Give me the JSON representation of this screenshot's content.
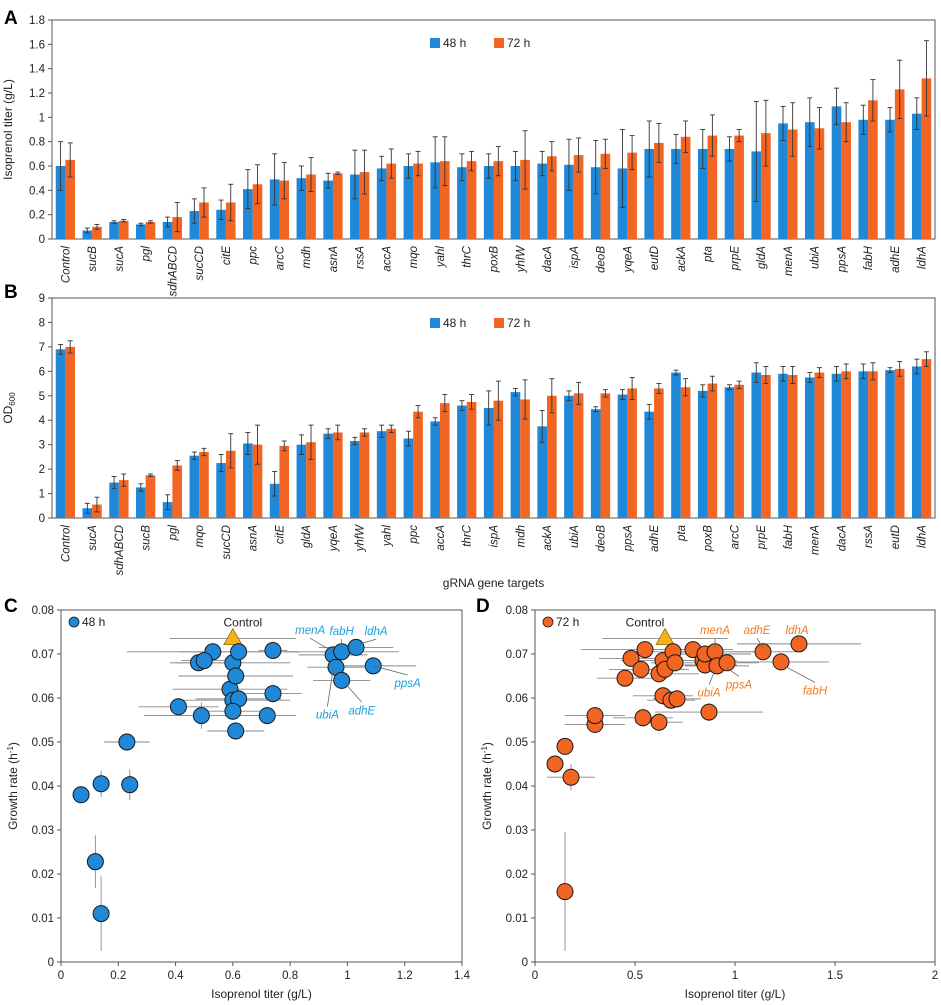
{
  "colors": {
    "blue": "#1f88d9",
    "orange": "#f26522",
    "gold": "#f5b21b",
    "axis": "#555555",
    "error": "#333333",
    "annotBlue": "#1aa0dc",
    "annotOrange": "#f27a22"
  },
  "chart_data": [
    {
      "panel": "A",
      "type": "bar",
      "ylabel": "Isoprenol titer (g/L)",
      "xlabel": "",
      "ylim": [
        0,
        1.8
      ],
      "yticks": [
        "0",
        "0.2",
        "0.4",
        "0.6",
        "0.8",
        "1",
        "1.2",
        "1.4",
        "1.6",
        "1.8"
      ],
      "legend": "top-center",
      "categories": [
        "Control",
        "sucB",
        "sucA",
        "pgl",
        "sdhABCD",
        "sucCD",
        "citE",
        "ppc",
        "arcC",
        "mdh",
        "asnA",
        "rssA",
        "accA",
        "mqo",
        "yahl",
        "thrC",
        "poxB",
        "yhfW",
        "dacA",
        "ispA",
        "deoB",
        "yqeA",
        "eutD",
        "ackA",
        "pta",
        "prpE",
        "gldA",
        "menA",
        "ubiA",
        "ppsA",
        "fabH",
        "adhE",
        "ldhA"
      ],
      "series": [
        {
          "name": "48 h",
          "values": [
            0.6,
            0.07,
            0.14,
            0.12,
            0.14,
            0.23,
            0.24,
            0.41,
            0.49,
            0.5,
            0.48,
            0.53,
            0.58,
            0.6,
            0.63,
            0.59,
            0.6,
            0.6,
            0.62,
            0.61,
            0.59,
            0.58,
            0.74,
            0.74,
            0.74,
            0.74,
            0.72,
            0.95,
            0.96,
            1.09,
            0.98,
            0.98,
            1.03
          ],
          "errors": [
            0.2,
            0.02,
            0.01,
            0.01,
            0.04,
            0.1,
            0.08,
            0.16,
            0.21,
            0.1,
            0.06,
            0.2,
            0.1,
            0.1,
            0.21,
            0.11,
            0.1,
            0.12,
            0.1,
            0.21,
            0.22,
            0.32,
            0.23,
            0.12,
            0.16,
            0.1,
            0.41,
            0.14,
            0.2,
            0.15,
            0.12,
            0.1,
            0.13
          ]
        },
        {
          "name": "72 h",
          "values": [
            0.65,
            0.1,
            0.15,
            0.14,
            0.18,
            0.3,
            0.3,
            0.45,
            0.48,
            0.53,
            0.54,
            0.55,
            0.62,
            0.62,
            0.64,
            0.64,
            0.64,
            0.65,
            0.68,
            0.69,
            0.7,
            0.71,
            0.79,
            0.84,
            0.85,
            0.85,
            0.87,
            0.9,
            0.91,
            0.96,
            1.14,
            1.23,
            1.32
          ],
          "errors": [
            0.14,
            0.02,
            0.01,
            0.01,
            0.12,
            0.12,
            0.15,
            0.16,
            0.15,
            0.14,
            0.01,
            0.18,
            0.12,
            0.1,
            0.2,
            0.08,
            0.12,
            0.24,
            0.12,
            0.14,
            0.12,
            0.14,
            0.16,
            0.13,
            0.17,
            0.05,
            0.27,
            0.22,
            0.17,
            0.16,
            0.17,
            0.24,
            0.31
          ]
        }
      ]
    },
    {
      "panel": "B",
      "type": "bar",
      "ylabel": "OD600",
      "ylabel_main": "OD",
      "ylabel_sub": "600",
      "xlabel": "gRNA gene targets",
      "ylim": [
        0,
        9
      ],
      "yticks": [
        "0",
        "1",
        "2",
        "3",
        "4",
        "5",
        "6",
        "7",
        "8",
        "9"
      ],
      "legend": "top-center",
      "categories": [
        "Control",
        "sucA",
        "sdhABCD",
        "sucB",
        "pgl",
        "mqo",
        "sucCD",
        "asnA",
        "citE",
        "gldA",
        "yqeA",
        "yhfW",
        "yahl",
        "ppc",
        "accA",
        "thrC",
        "ispA",
        "mdh",
        "ackA",
        "ubiA",
        "deoB",
        "ppsA",
        "adhE",
        "pta",
        "poxB",
        "arcC",
        "prpE",
        "fabH",
        "menA",
        "dacA",
        "rssA",
        "eutD",
        "ldhA"
      ],
      "series": [
        {
          "name": "48 h",
          "values": [
            6.9,
            0.4,
            1.45,
            1.25,
            0.65,
            2.55,
            2.25,
            3.05,
            1.4,
            3.0,
            3.45,
            3.15,
            3.55,
            3.25,
            3.95,
            4.6,
            4.5,
            5.15,
            3.75,
            5.0,
            4.45,
            5.05,
            4.35,
            5.95,
            5.2,
            5.35,
            5.95,
            5.9,
            5.75,
            5.9,
            6.0,
            6.05,
            6.2
          ],
          "errors": [
            0.2,
            0.2,
            0.25,
            0.15,
            0.3,
            0.15,
            0.35,
            0.45,
            0.5,
            0.4,
            0.2,
            0.15,
            0.25,
            0.3,
            0.15,
            0.2,
            0.7,
            0.15,
            0.65,
            0.2,
            0.1,
            0.2,
            0.3,
            0.1,
            0.25,
            0.1,
            0.4,
            0.3,
            0.2,
            0.3,
            0.3,
            0.1,
            0.3
          ]
        },
        {
          "name": "72 h",
          "values": [
            7.0,
            0.55,
            1.55,
            1.75,
            2.15,
            2.7,
            2.75,
            3.0,
            2.95,
            3.1,
            3.5,
            3.5,
            3.65,
            4.35,
            4.7,
            4.75,
            4.8,
            4.85,
            5.0,
            5.1,
            5.1,
            5.3,
            5.3,
            5.35,
            5.5,
            5.45,
            5.85,
            5.85,
            5.95,
            6.0,
            6.0,
            6.1,
            6.5
          ],
          "errors": [
            0.25,
            0.3,
            0.25,
            0.05,
            0.2,
            0.15,
            0.7,
            0.8,
            0.2,
            0.7,
            0.3,
            0.15,
            0.15,
            0.25,
            0.35,
            0.3,
            0.8,
            0.8,
            0.7,
            0.45,
            0.15,
            0.45,
            0.2,
            0.35,
            0.3,
            0.15,
            0.35,
            0.35,
            0.2,
            0.3,
            0.35,
            0.3,
            0.3
          ]
        }
      ]
    },
    {
      "panel": "C",
      "type": "scatter",
      "xlabel": "Isoprenol titer (g/L)",
      "ylabel": "Growth rate (h-1)",
      "ylabel_main": "Growth rate (h",
      "ylabel_sup": "-1",
      "ylabel_end": ")",
      "xlim": [
        0,
        1.4
      ],
      "ylim": [
        0,
        0.08
      ],
      "xticks": [
        "0",
        "0.2",
        "0.4",
        "0.6",
        "0.8",
        "1",
        "1.2",
        "1.4"
      ],
      "yticks": [
        "0",
        "0.01",
        "0.02",
        "0.03",
        "0.04",
        "0.05",
        "0.06",
        "0.07",
        "0.08"
      ],
      "legend": "48 h",
      "control_label": "Control",
      "control": {
        "x": 0.6,
        "y": 0.0735
      },
      "points": [
        {
          "x": 0.07,
          "y": 0.038,
          "xerr": 0.01,
          "yerr": 0.001
        },
        {
          "x": 0.14,
          "y": 0.011,
          "xerr": 0.01,
          "yerr": 0.0085
        },
        {
          "x": 0.12,
          "y": 0.0228,
          "xerr": 0.01,
          "yerr": 0.006
        },
        {
          "x": 0.14,
          "y": 0.0405,
          "xerr": 0.01,
          "yerr": 0.003
        },
        {
          "x": 0.24,
          "y": 0.0403,
          "xerr": 0.03,
          "yerr": 0.0035
        },
        {
          "x": 0.23,
          "y": 0.05,
          "xerr": 0.08,
          "yerr": 0.002
        },
        {
          "x": 0.41,
          "y": 0.058,
          "xerr": 0.14,
          "yerr": 0.002
        },
        {
          "x": 0.49,
          "y": 0.056,
          "xerr": 0.2,
          "yerr": 0.003
        },
        {
          "x": 0.53,
          "y": 0.0705,
          "xerr": 0.3,
          "yerr": 0.001
        },
        {
          "x": 0.48,
          "y": 0.068,
          "xerr": 0.1,
          "yerr": 0.001
        },
        {
          "x": 0.5,
          "y": 0.0685,
          "xerr": 0.08,
          "yerr": 0.001
        },
        {
          "x": 0.59,
          "y": 0.062,
          "xerr": 0.2,
          "yerr": 0.002
        },
        {
          "x": 0.6,
          "y": 0.068,
          "xerr": 0.2,
          "yerr": 0.001
        },
        {
          "x": 0.61,
          "y": 0.065,
          "xerr": 0.2,
          "yerr": 0.002
        },
        {
          "x": 0.6,
          "y": 0.0595,
          "xerr": 0.2,
          "yerr": 0.002
        },
        {
          "x": 0.62,
          "y": 0.0598,
          "xerr": 0.15,
          "yerr": 0.002
        },
        {
          "x": 0.6,
          "y": 0.057,
          "xerr": 0.1,
          "yerr": 0.002
        },
        {
          "x": 0.61,
          "y": 0.0525,
          "xerr": 0.1,
          "yerr": 0.002
        },
        {
          "x": 0.62,
          "y": 0.0705,
          "xerr": 0.21,
          "yerr": 0.001
        },
        {
          "x": 0.74,
          "y": 0.0708,
          "xerr": 0.05,
          "yerr": 0.001
        },
        {
          "x": 0.74,
          "y": 0.061,
          "xerr": 0.1,
          "yerr": 0.002
        },
        {
          "x": 0.72,
          "y": 0.056,
          "xerr": 0.1,
          "yerr": 0.002
        },
        {
          "x": 0.95,
          "y": 0.0698,
          "xerr": 0.12,
          "yerr": 0.001
        },
        {
          "x": 0.96,
          "y": 0.067,
          "xerr": 0.1,
          "yerr": 0.001
        },
        {
          "x": 0.98,
          "y": 0.0705,
          "xerr": 0.2,
          "yerr": 0.001
        },
        {
          "x": 0.98,
          "y": 0.064,
          "xerr": 0.1,
          "yerr": 0.001
        },
        {
          "x": 1.03,
          "y": 0.0715,
          "xerr": 0.13,
          "yerr": 0.001
        },
        {
          "x": 1.09,
          "y": 0.0673,
          "xerr": 0.15,
          "yerr": 0.001
        }
      ],
      "annotations": [
        {
          "label": "menA",
          "x": 0.87,
          "y": 0.0745,
          "tx": 0.95,
          "ty": 0.0705
        },
        {
          "label": "fabH",
          "x": 0.98,
          "y": 0.0743,
          "tx": 0.98,
          "ty": 0.0712
        },
        {
          "label": "ldhA",
          "x": 1.1,
          "y": 0.0743,
          "tx": 1.04,
          "ty": 0.0722
        },
        {
          "label": "ppsA",
          "x": 1.21,
          "y": 0.0625,
          "tx": 1.09,
          "ty": 0.0673
        },
        {
          "label": "adhE",
          "x": 1.05,
          "y": 0.0563,
          "tx": 0.99,
          "ty": 0.0635
        },
        {
          "label": "ubiA",
          "x": 0.93,
          "y": 0.0553,
          "tx": 0.95,
          "ty": 0.0665
        }
      ]
    },
    {
      "panel": "D",
      "type": "scatter",
      "xlabel": "Isoprenol titer (g/L)",
      "ylabel": "Growth rate (h-1)",
      "ylabel_main": "Growth rate (h",
      "ylabel_sup": "-1",
      "ylabel_end": ")",
      "xlim": [
        0,
        2
      ],
      "ylim": [
        0,
        0.08
      ],
      "xticks": [
        "0",
        "0.5",
        "1",
        "1.5",
        "2"
      ],
      "yticks": [
        "0",
        "0.01",
        "0.02",
        "0.03",
        "0.04",
        "0.05",
        "0.06",
        "0.07",
        "0.08"
      ],
      "legend": "72 h",
      "control_label": "Control",
      "control": {
        "x": 0.65,
        "y": 0.0735
      },
      "points": [
        {
          "x": 0.1,
          "y": 0.045,
          "xerr": 0.01,
          "yerr": 0.001
        },
        {
          "x": 0.15,
          "y": 0.049,
          "xerr": 0.01,
          "yerr": 0.001
        },
        {
          "x": 0.15,
          "y": 0.016,
          "xerr": 0.01,
          "yerr": 0.0135
        },
        {
          "x": 0.18,
          "y": 0.042,
          "xerr": 0.12,
          "yerr": 0.003
        },
        {
          "x": 0.3,
          "y": 0.054,
          "xerr": 0.15,
          "yerr": 0.002
        },
        {
          "x": 0.3,
          "y": 0.056,
          "xerr": 0.15,
          "yerr": 0.002
        },
        {
          "x": 0.45,
          "y": 0.0645,
          "xerr": 0.14,
          "yerr": 0.001
        },
        {
          "x": 0.48,
          "y": 0.069,
          "xerr": 0.16,
          "yerr": 0.001
        },
        {
          "x": 0.53,
          "y": 0.0665,
          "xerr": 0.16,
          "yerr": 0.002
        },
        {
          "x": 0.54,
          "y": 0.0555,
          "xerr": 0.15,
          "yerr": 0.002
        },
        {
          "x": 0.55,
          "y": 0.071,
          "xerr": 0.32,
          "yerr": 0.001
        },
        {
          "x": 0.62,
          "y": 0.0655,
          "xerr": 0.2,
          "yerr": 0.002
        },
        {
          "x": 0.64,
          "y": 0.0685,
          "xerr": 0.21,
          "yerr": 0.001
        },
        {
          "x": 0.62,
          "y": 0.0545,
          "xerr": 0.12,
          "yerr": 0.002
        },
        {
          "x": 0.64,
          "y": 0.0605,
          "xerr": 0.15,
          "yerr": 0.002
        },
        {
          "x": 0.65,
          "y": 0.0665,
          "xerr": 0.12,
          "yerr": 0.002
        },
        {
          "x": 0.68,
          "y": 0.0595,
          "xerr": 0.12,
          "yerr": 0.002
        },
        {
          "x": 0.69,
          "y": 0.0705,
          "xerr": 0.24,
          "yerr": 0.001
        },
        {
          "x": 0.7,
          "y": 0.068,
          "xerr": 0.12,
          "yerr": 0.002
        },
        {
          "x": 0.71,
          "y": 0.0598,
          "xerr": 0.12,
          "yerr": 0.002
        },
        {
          "x": 0.79,
          "y": 0.071,
          "xerr": 0.2,
          "yerr": 0.001
        },
        {
          "x": 0.84,
          "y": 0.0685,
          "xerr": 0.17,
          "yerr": 0.001
        },
        {
          "x": 0.85,
          "y": 0.0675,
          "xerr": 0.16,
          "yerr": 0.002
        },
        {
          "x": 0.85,
          "y": 0.07,
          "xerr": 0.23,
          "yerr": 0.001
        },
        {
          "x": 0.87,
          "y": 0.0568,
          "xerr": 0.27,
          "yerr": 0.002
        },
        {
          "x": 0.9,
          "y": 0.0705,
          "xerr": 0.2,
          "yerr": 0.001
        },
        {
          "x": 0.91,
          "y": 0.0673,
          "xerr": 0.16,
          "yerr": 0.001
        },
        {
          "x": 0.96,
          "y": 0.068,
          "xerr": 0.16,
          "yerr": 0.001
        },
        {
          "x": 1.14,
          "y": 0.0705,
          "xerr": 0.17,
          "yerr": 0.001
        },
        {
          "x": 1.23,
          "y": 0.0682,
          "xerr": 0.24,
          "yerr": 0.001
        },
        {
          "x": 1.32,
          "y": 0.0723,
          "xerr": 0.31,
          "yerr": 0.001
        }
      ],
      "annotations": [
        {
          "label": "menA",
          "x": 0.9,
          "y": 0.0745,
          "tx": 0.9,
          "ty": 0.0713
        },
        {
          "label": "adhE",
          "x": 1.11,
          "y": 0.0745,
          "tx": 1.14,
          "ty": 0.0713
        },
        {
          "label": "ldhA",
          "x": 1.31,
          "y": 0.0745,
          "tx": 1.32,
          "ty": 0.0733
        },
        {
          "label": "ppsA",
          "x": 1.02,
          "y": 0.0622,
          "tx": 0.96,
          "ty": 0.0668
        },
        {
          "label": "ubiA",
          "x": 0.87,
          "y": 0.0603,
          "tx": 0.9,
          "ty": 0.0663
        },
        {
          "label": "fabH",
          "x": 1.4,
          "y": 0.0608,
          "tx": 1.25,
          "ty": 0.0672
        }
      ]
    }
  ]
}
